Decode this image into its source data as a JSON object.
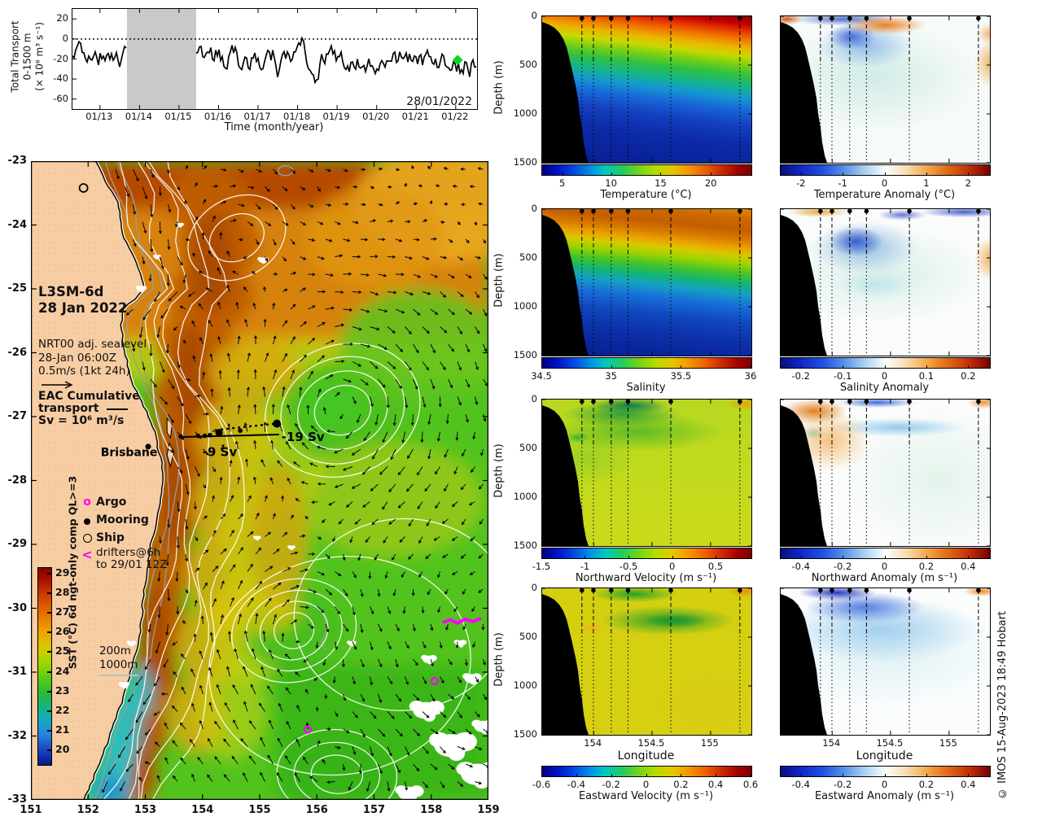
{
  "figure": {
    "copyright": "© IMOS 15-Aug-2023 18:49 Hobart"
  },
  "colors": {
    "land": "#f7cda3",
    "gap_band": "#c9c9c9",
    "series_line": "#000000",
    "latest_marker_green": "#00d91e",
    "argo_magenta": "#ff00ff"
  },
  "timeseries": {
    "ylabel": [
      "Total Transport",
      "0-1500 m",
      "(× 10⁶ m³ s⁻¹)"
    ],
    "xlabel": "Time (month/year)",
    "xticks": [
      "01/13",
      "01/14",
      "01/15",
      "01/16",
      "01/17",
      "01/18",
      "01/19",
      "01/20",
      "01/21",
      "01/22"
    ],
    "yticks": [
      "20",
      "0",
      "-20",
      "-40",
      "-60"
    ],
    "date_label": "28/01/2022"
  },
  "map": {
    "title": [
      "L3SM-6d",
      "28 Jan 2022"
    ],
    "subtitle": [
      "NRT00 adj. sealevel",
      "28-Jan 06:00Z",
      "0.5m/s (1kt 24h)"
    ],
    "eac": [
      "EAC Cumulative",
      "transport",
      "Sv = 10⁶ m³/s"
    ],
    "city": "Brisbane",
    "transport_labels": {
      "partial": "-9 Sv",
      "total": "-19 Sv"
    },
    "legend": {
      "argo": "Argo",
      "argo_symbol": "o",
      "mooring": "Mooring",
      "ship": "Ship",
      "drifters": [
        "drifters@6h",
        "to 29/01 12Z"
      ],
      "drifters_symbol": "<",
      "isobaths": [
        "200m",
        "1000m"
      ]
    },
    "colorbar": {
      "label": "SST (°C) 6d ngt-only comp QL>=3",
      "ticks": [
        "29",
        "28",
        "27",
        "26",
        "25",
        "24",
        "23",
        "22",
        "21",
        "20"
      ]
    },
    "xticks": [
      "151",
      "152",
      "153",
      "154",
      "155",
      "156",
      "157",
      "158",
      "159"
    ],
    "yticks": [
      "-23",
      "-24",
      "-25",
      "-26",
      "-27",
      "-28",
      "-29",
      "-30",
      "-31",
      "-32",
      "-33"
    ]
  },
  "sections": {
    "ylabel": "Depth (m)",
    "yticks": [
      "0",
      "500",
      "1000",
      "1500"
    ],
    "xlabel": "Longitude",
    "xticks": [
      "154",
      "154.5",
      "155"
    ],
    "xtickpos": [
      24.6,
      52.5,
      80.5
    ],
    "mooring_fractions": [
      0.19,
      0.245,
      0.33,
      0.41,
      0.615,
      0.945
    ],
    "panels": [
      {
        "id": "temperature",
        "label": "Temperature (°C)",
        "cb": "jet",
        "ticks": [
          "5",
          "10",
          "15",
          "20"
        ],
        "tickpos": [
          10,
          33.3,
          57,
          81
        ]
      },
      {
        "id": "temperature-anomaly",
        "label": "Temperature Anomaly (°C)",
        "cb": "anom",
        "ticks": [
          "-2",
          "-1",
          "0",
          "1",
          "2"
        ],
        "tickpos": [
          10,
          30,
          50,
          70,
          90
        ]
      },
      {
        "id": "salinity",
        "label": "Salinity",
        "cb": "jet",
        "ticks": [
          "34.5",
          "35",
          "35.5",
          "36"
        ],
        "tickpos": [
          0,
          33.3,
          66.7,
          100
        ]
      },
      {
        "id": "salinity-anomaly",
        "label": "Salinity Anomaly",
        "cb": "anom",
        "ticks": [
          "-0.2",
          "-0.1",
          "0",
          "0.1",
          "0.2"
        ],
        "tickpos": [
          10,
          30,
          50,
          70,
          90
        ]
      },
      {
        "id": "northward-velocity",
        "label": "Northward Velocity (m s⁻¹)",
        "cb": "jet",
        "ticks": [
          "-1.5",
          "-1",
          "-0.5",
          "0",
          "0.5"
        ],
        "tickpos": [
          0,
          20.8,
          41.7,
          62.5,
          83.3
        ]
      },
      {
        "id": "northward-anomaly",
        "label": "Northward Anomaly (m s⁻¹)",
        "cb": "anom",
        "ticks": [
          "-0.4",
          "-0.2",
          "0",
          "0.2",
          "0.4"
        ],
        "tickpos": [
          10,
          30,
          50,
          70,
          90
        ]
      },
      {
        "id": "eastward-velocity",
        "label": "Eastward Velocity (m s⁻¹)",
        "cb": "jet",
        "ticks": [
          "-0.6",
          "-0.4",
          "-0.2",
          "0",
          "0.2",
          "0.4",
          "0.6"
        ],
        "tickpos": [
          0,
          16.7,
          33.3,
          50,
          66.7,
          83.3,
          100
        ]
      },
      {
        "id": "eastward-anomaly",
        "label": "Eastward Anomaly (m s⁻¹)",
        "cb": "anom",
        "ticks": [
          "-0.4",
          "-0.2",
          "0",
          "0.2",
          "0.4"
        ],
        "tickpos": [
          10,
          30,
          50,
          70,
          90
        ]
      }
    ]
  },
  "chart_data": [
    {
      "type": "line",
      "title": "Total Transport 0-1500 m",
      "ylabel": "Total Transport 0-1500 m (× 10⁶ m³ s⁻¹)",
      "xlabel": "Time (month/year)",
      "x_ticks": [
        "01/13",
        "01/14",
        "01/15",
        "01/16",
        "01/17",
        "01/18",
        "01/19",
        "01/20",
        "01/21",
        "01/22"
      ],
      "ylim": [
        -70,
        30
      ],
      "y_ticks": [
        20,
        0,
        -20,
        -40,
        -60
      ],
      "zero_line": "dotted",
      "series_stats": {
        "mean": -21,
        "min": -58,
        "max": 19
      },
      "data_gap_fraction_of_axis": [
        0.135,
        0.305
      ],
      "latest": {
        "date": "28/01/2022",
        "value": -21,
        "marker": "green-diamond"
      },
      "legend_position": "none",
      "grid": false
    },
    {
      "type": "heatmap",
      "title": "SST map with surface currents and adjusted sea level contours",
      "xlabel": "Longitude",
      "ylabel": "Latitude",
      "xlim": [
        151,
        159
      ],
      "ylim": [
        -33,
        -23
      ],
      "colorbar": {
        "label": "SST (°C) 6d ngt-only comp QL>=3",
        "range": [
          19.5,
          29.5
        ],
        "ticks": [
          29,
          28,
          27,
          26,
          25,
          24,
          23,
          22,
          21,
          20
        ]
      },
      "annotations": [
        "L3SM-6d",
        "28 Jan 2022",
        "NRT00 adj. sealevel",
        "28-Jan 06:00Z",
        "0.5m/s (1kt 24h)",
        "EAC Cumulative transport",
        "Sv = 10⁶ m³/s",
        "Brisbane",
        "-9 Sv",
        "-19 Sv"
      ],
      "mooring_transect_lat": -27.3,
      "mooring_longitudes": [
        153.62,
        153.92,
        154.04,
        154.13,
        154.29,
        154.66,
        155.31
      ],
      "cumulative_transport_sv": {
        "partial_to_154.3E": -9,
        "total_to_155.3E": -19
      },
      "brisbane_position": [
        153.05,
        -27.47
      ],
      "features": "Warm EAC jet (27-29°C) flowing south along the coast to ~32S; cooler green water (22-24°C) offshore; cyclonic eddies near 156.4E -26.9S, 155.6E -30.3S, 156.3E -32.6S; cloud gaps (white) in the southeast corner; Argo floats and drifter track in magenta"
    },
    {
      "type": "heatmap",
      "title": "Temperature section along mooring line",
      "xlim": [
        153.55,
        155.35
      ],
      "ylim_depth_m": [
        0,
        1500
      ],
      "colorbar_range_c": [
        3,
        23.4
      ],
      "ticks": [
        5,
        10,
        15,
        20
      ],
      "description": "~23°C surface layer, thermocline 200-500 m (isotherms deepen offshore), <5°C below 1200 m; black bathymetry wedge on western side"
    },
    {
      "type": "heatmap",
      "title": "Temperature Anomaly section",
      "xlim": [
        153.55,
        155.35
      ],
      "ylim_depth_m": [
        0,
        1500
      ],
      "colorbar_range_c": [
        -2.5,
        2.5
      ],
      "ticks": [
        -2,
        -1,
        0,
        1,
        2
      ],
      "description": "Cool anomaly (-1 to -2°C) 100-400 m between 154 and 154.6E; warm anomalies (+1 to +2°C) in thin surface streaks and at the eastern edge"
    },
    {
      "type": "heatmap",
      "title": "Salinity section",
      "xlim": [
        153.55,
        155.35
      ],
      "ylim_depth_m": [
        0,
        1500
      ],
      "colorbar_range": [
        34.5,
        36
      ],
      "ticks": [
        34.5,
        35,
        35.5,
        36
      ],
      "description": "Salinity maximum ~35.7 in upper 250 m, halocline 300-600 m, ~34.5 below 1000 m"
    },
    {
      "type": "heatmap",
      "title": "Salinity Anomaly section",
      "xlim": [
        153.55,
        155.35
      ],
      "ylim_depth_m": [
        0,
        1500
      ],
      "colorbar_range": [
        -0.25,
        0.25
      ],
      "ticks": [
        -0.2,
        -0.1,
        0,
        0.1,
        0.2
      ],
      "description": "Fresh anomaly (-0.1 to -0.2) 100-400 m around 154-154.6E; salty anomaly (+0.1) near eastern boundary"
    },
    {
      "type": "heatmap",
      "title": "Northward Velocity section",
      "xlim": [
        153.55,
        155.35
      ],
      "ylim_depth_m": [
        0,
        1500
      ],
      "colorbar_range_ms": [
        -1.5,
        0.9
      ],
      "ticks": [
        -1.5,
        -1,
        -0.5,
        0,
        0.5
      ],
      "description": "Southward EAC core (-1 to -1.5 m/s) in upper 200 m between 154 and 154.7E; weak flow (~0) below 700 m; northward (+0.5) at surface eastern edge"
    },
    {
      "type": "heatmap",
      "title": "Northward Anomaly section",
      "xlim": [
        153.55,
        155.35
      ],
      "ylim_depth_m": [
        0,
        1500
      ],
      "colorbar_range_ms": [
        -0.5,
        0.5
      ],
      "ticks": [
        -0.4,
        -0.2,
        0,
        0.2,
        0.4
      ],
      "description": "Positive anomaly (+0.3) over the slope upper 400 m; negative anomaly (-0.3) streak near surface around 154.4-154.8E"
    },
    {
      "type": "heatmap",
      "title": "Eastward Velocity section",
      "xlim": [
        153.55,
        155.35
      ],
      "ylim_depth_m": [
        0,
        1500
      ],
      "colorbar_range_ms": [
        -0.6,
        0.6
      ],
      "ticks": [
        -0.6,
        -0.4,
        -0.2,
        0,
        0.2,
        0.4,
        0.6
      ],
      "description": "Westward flow (-0.2 m/s, green) near surface 154-154.8E and 250-450 m mid-section; eastward (+0.3, orange) at surface eastern edge"
    },
    {
      "type": "heatmap",
      "title": "Eastward Anomaly section",
      "xlim": [
        153.55,
        155.35
      ],
      "ylim_depth_m": [
        0,
        1500
      ],
      "colorbar_range_ms": [
        -0.5,
        0.5
      ],
      "ticks": [
        -0.4,
        -0.2,
        0,
        0.2,
        0.4
      ],
      "description": "Broad westward anomaly (-0.2 to -0.4) in upper 500 m; eastward anomaly (+0.3) at surface near eastern edge"
    }
  ]
}
